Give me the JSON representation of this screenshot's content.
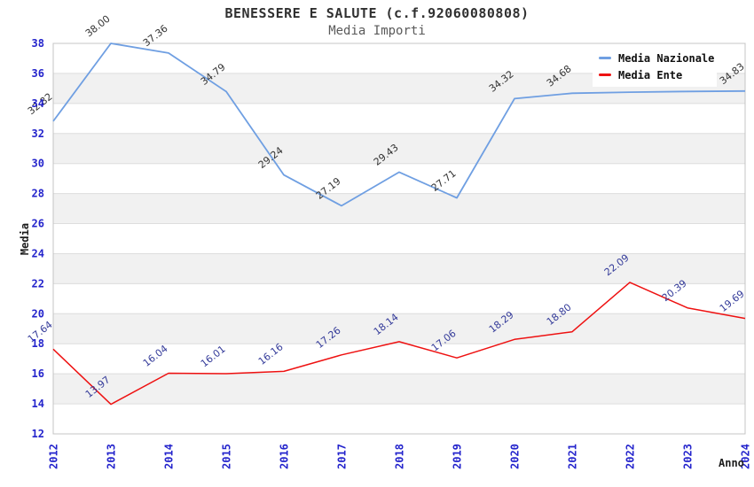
{
  "chart_data": {
    "type": "line",
    "title": "BENESSERE E SALUTE (c.f.92060080808)",
    "subtitle": "Media Importi",
    "xlabel": "Anno",
    "ylabel": "Media",
    "categories": [
      "2012",
      "2013",
      "2014",
      "2015",
      "2016",
      "2017",
      "2018",
      "2019",
      "2020",
      "2021",
      "2022",
      "2023",
      "2024"
    ],
    "ylim": [
      12,
      38
    ],
    "ytick_step": 2,
    "grid": "alternating-horizontal-bands",
    "legend_position": "top-right",
    "series": [
      {
        "name": "Media Nazionale",
        "color": "#6F9FE2",
        "label_color": "#333333",
        "values": [
          32.82,
          38.0,
          37.36,
          34.79,
          29.24,
          27.19,
          29.43,
          27.71,
          34.32,
          34.68,
          34.75,
          34.8,
          34.83
        ],
        "labels": [
          "32.82",
          "38.00",
          "37.36",
          "34.79",
          "29.24",
          "27.19",
          "29.43",
          "27.71",
          "34.32",
          "34.68",
          "",
          "",
          "34.83"
        ]
      },
      {
        "name": "Media Ente",
        "color": "#EE1111",
        "label_color": "#333A99",
        "values": [
          17.64,
          13.97,
          16.04,
          16.01,
          16.16,
          17.26,
          18.14,
          17.06,
          18.29,
          18.8,
          22.09,
          20.39,
          19.69
        ],
        "labels": [
          "17.64",
          "13.97",
          "16.04",
          "16.01",
          "16.16",
          "17.26",
          "18.14",
          "17.06",
          "18.29",
          "18.80",
          "22.09",
          "20.39",
          "19.69"
        ]
      }
    ],
    "colors": {
      "tick_label": "#2424CC",
      "axis_title": "#1C1C1C",
      "band": "#F1F1F1",
      "grid_line": "#DDDDDD",
      "plot_border": "#C4C4C4",
      "background": "#FFFFFF"
    }
  }
}
